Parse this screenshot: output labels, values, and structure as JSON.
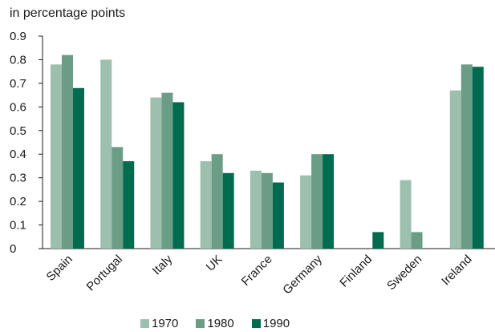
{
  "chart_data": {
    "type": "bar",
    "title": "",
    "ylabel": "in percentage points",
    "xlabel": "",
    "ylim": [
      0,
      0.9
    ],
    "yticks": [
      "0",
      "0.1",
      "0.2",
      "0.3",
      "0.4",
      "0.5",
      "0.6",
      "0.7",
      "0.8",
      "0.9"
    ],
    "categories": [
      "Spain",
      "Portugal",
      "Italy",
      "UK",
      "France",
      "Germany",
      "Finland",
      "Sweden",
      "Ireland"
    ],
    "series": [
      {
        "name": "1970",
        "color": "#9dbfae",
        "values": [
          0.78,
          0.8,
          0.64,
          0.37,
          0.33,
          0.31,
          null,
          0.29,
          0.67
        ]
      },
      {
        "name": "1980",
        "color": "#6b9d86",
        "values": [
          0.82,
          0.43,
          0.66,
          0.4,
          0.32,
          0.4,
          null,
          0.07,
          0.78
        ]
      },
      {
        "name": "1990",
        "color": "#006b4f",
        "values": [
          0.68,
          0.37,
          0.62,
          0.32,
          0.28,
          0.4,
          0.07,
          null,
          0.77
        ]
      }
    ],
    "grid": false,
    "legend_position": "bottom"
  }
}
